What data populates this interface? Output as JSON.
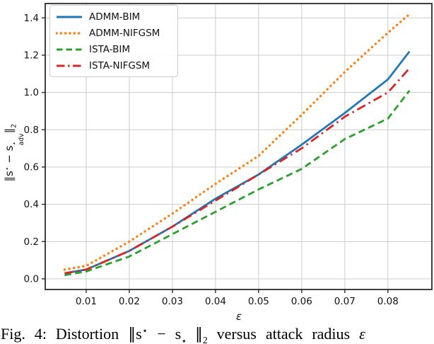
{
  "chart_data": {
    "type": "line",
    "title": "",
    "xlabel": "ε",
    "ylabel_math": "∥s⋆ − s⋆adv∥2",
    "x": [
      0.005,
      0.01,
      0.02,
      0.03,
      0.04,
      0.05,
      0.06,
      0.07,
      0.08,
      0.085
    ],
    "series": [
      {
        "name": "ADMM-BIM",
        "color": "#1f77b4",
        "style": "solid",
        "values": [
          0.03,
          0.05,
          0.15,
          0.28,
          0.43,
          0.56,
          0.72,
          0.89,
          1.07,
          1.22
        ]
      },
      {
        "name": "ADMM-NIFGSM",
        "color": "#ff7f0e",
        "style": "dotted",
        "values": [
          0.05,
          0.07,
          0.2,
          0.35,
          0.51,
          0.66,
          0.88,
          1.11,
          1.32,
          1.42
        ]
      },
      {
        "name": "ISTA-BIM",
        "color": "#2ca02c",
        "style": "dashed",
        "values": [
          0.02,
          0.04,
          0.12,
          0.24,
          0.36,
          0.48,
          0.59,
          0.75,
          0.86,
          1.01
        ]
      },
      {
        "name": "ISTA-NIFGSM",
        "color": "#d62728",
        "style": "dashdot",
        "values": [
          0.03,
          0.05,
          0.15,
          0.28,
          0.42,
          0.56,
          0.7,
          0.87,
          1.0,
          1.13
        ]
      }
    ],
    "x_ticks": [
      0.01,
      0.02,
      0.03,
      0.04,
      0.05,
      0.06,
      0.07,
      0.08
    ],
    "x_tick_labels": [
      "0.01",
      "0.02",
      "0.03",
      "0.04",
      "0.05",
      "0.06",
      "0.07",
      "0.08"
    ],
    "y_ticks": [
      0.0,
      0.2,
      0.4,
      0.6,
      0.8,
      1.0,
      1.2,
      1.4
    ],
    "y_tick_labels": [
      "0.0",
      "0.2",
      "0.4",
      "0.6",
      "0.8",
      "1.0",
      "1.2",
      "1.4"
    ],
    "xlim": [
      0.0005,
      0.0902
    ],
    "ylim": [
      -0.057,
      1.477
    ],
    "grid": true,
    "grid_color": "#cccccc",
    "spine_color": "#2b2b2b",
    "legend_position": "upper left"
  },
  "labels": {
    "xlabel": "ε",
    "norm_expr": {
      "open": "∥s",
      "star1": "⋆",
      "minus_s": " − s",
      "star2": "⋆",
      "sub_adv": "adv",
      "close": "∥",
      "sub_2": "2"
    }
  },
  "caption": {
    "fig_label": "Fig. 4: Distortion ",
    "tail": " versus attack radius ",
    "epsilon": "ε"
  }
}
